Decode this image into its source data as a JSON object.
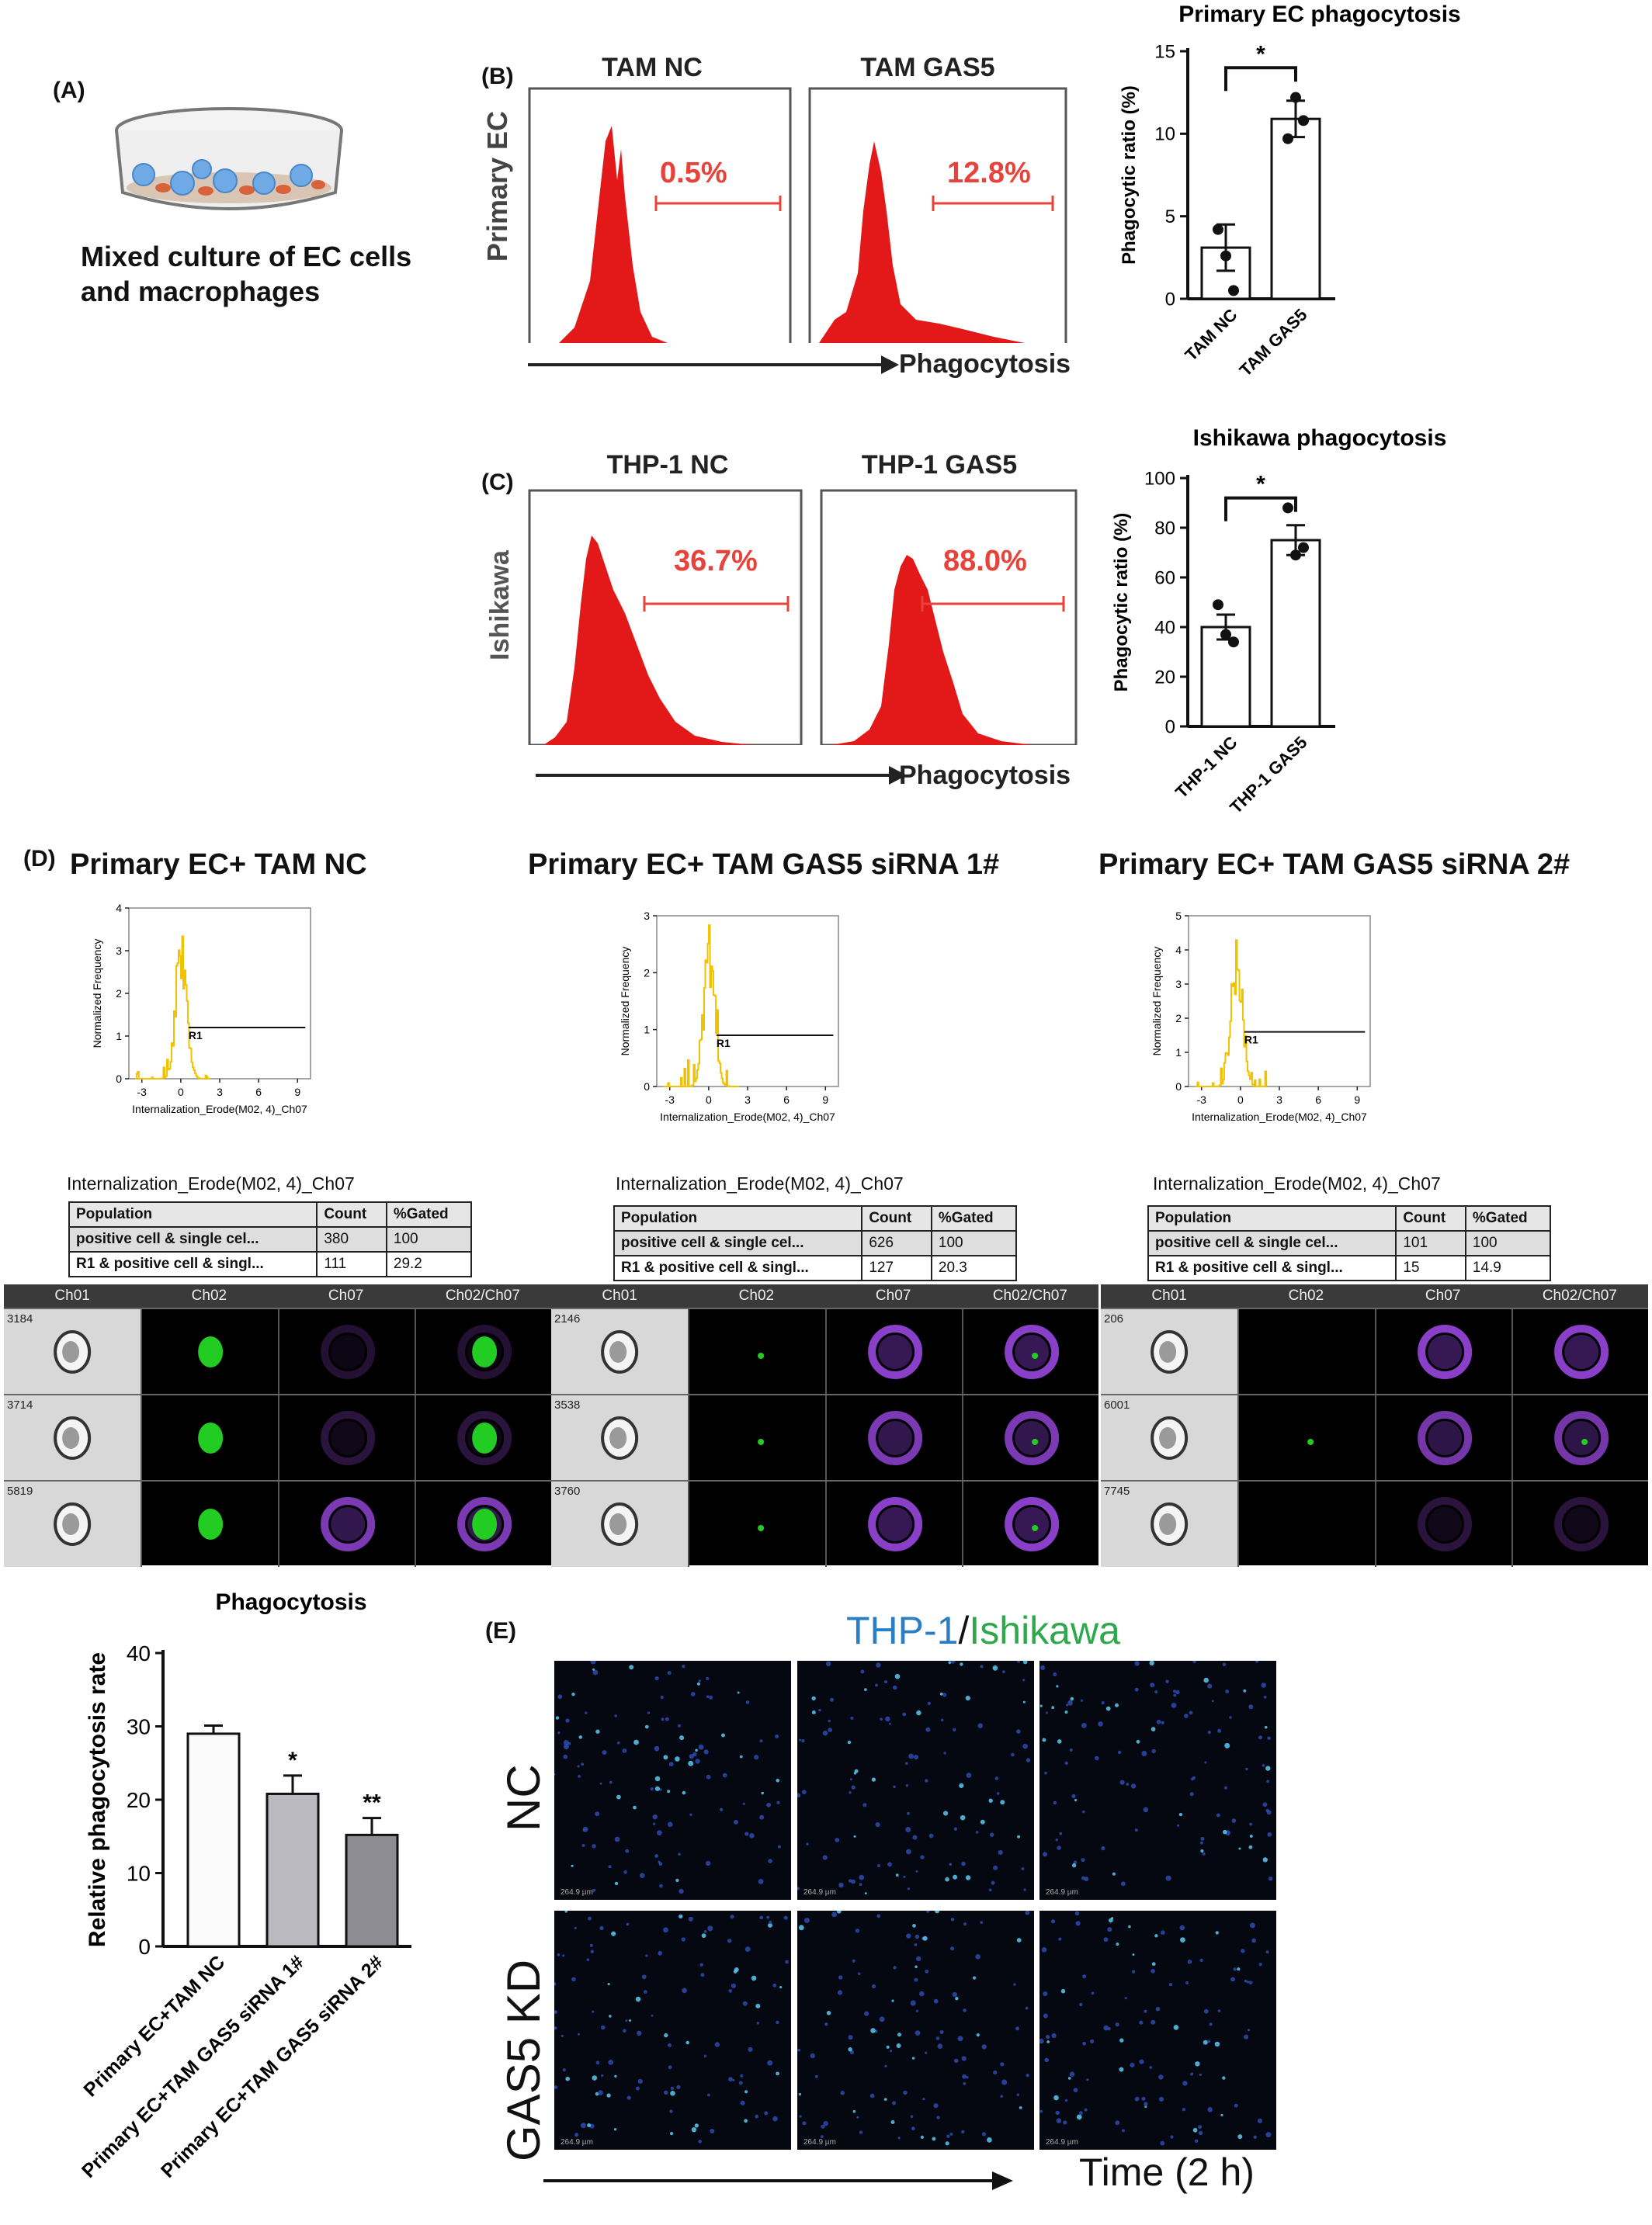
{
  "panels": {
    "A": "(A)",
    "B": "(B)",
    "C": "(C)",
    "D": "(D)",
    "E": "(E)"
  },
  "panelA": {
    "caption_line1": "Mixed culture of EC cells",
    "caption_line2": "and macrophages"
  },
  "panelB": {
    "row_label": "Primary EC",
    "col1_title": "TAM NC",
    "col2_title": "TAM GAS5",
    "gate1": "0.5%",
    "gate2": "12.8%",
    "axis_label": "Phagocytosis"
  },
  "panelC": {
    "row_label": "Ishikawa",
    "col1_title": "THP-1 NC",
    "col2_title": "THP-1 GAS5",
    "gate1": "36.7%",
    "gate2": "88.0%",
    "axis_label": "Phagocytosis"
  },
  "panelD": {
    "titles": [
      "Primary EC+ TAM NC",
      "Primary EC+ TAM GAS5 siRNA 1#",
      "Primary EC+ TAM GAS5 siRNA 2#"
    ],
    "hist_ylabel": "Normalized Frequency",
    "hist_xlabel": "Internalization_Erode(M02, 4)_Ch07",
    "gate_label": "R1",
    "table_caption": "Internalization_Erode(M02, 4)_Ch07",
    "table_headers": [
      "Population",
      "Count",
      "%Gated"
    ],
    "tables": [
      [
        [
          "positive cell & single cel...",
          "380",
          "100"
        ],
        [
          "R1 & positive cell & singl...",
          "111",
          "29.2"
        ]
      ],
      [
        [
          "positive cell & single cel...",
          "626",
          "100"
        ],
        [
          "R1 & positive cell & singl...",
          "127",
          "20.3"
        ]
      ],
      [
        [
          "positive cell & single cel...",
          "101",
          "100"
        ],
        [
          "R1 & positive cell & singl...",
          "15",
          "14.9"
        ]
      ]
    ],
    "channels": [
      "Ch01",
      "Ch02",
      "Ch07",
      "Ch02/Ch07"
    ],
    "cell_ids": [
      [
        "3184",
        "3714",
        "5819"
      ],
      [
        "2146",
        "3538",
        "3760"
      ],
      [
        "206",
        "6001",
        "7745"
      ]
    ]
  },
  "panelE": {
    "title_part1": "THP-1",
    "title_sep": "/",
    "title_part2": "Ishikawa",
    "row1": "NC",
    "row2": "GAS5 KD",
    "time_label": "Time (2 h)",
    "scale_label": "264.9 µm"
  },
  "colors": {
    "flow_red": "#e31818",
    "gate_red": "#e8433a",
    "hist_yellow": "#f2c200",
    "blue_title": "#2a7fc4",
    "green_title": "#2ea84a",
    "green_cell": "#22cc22",
    "purple_cell": "#8a3fc8"
  },
  "chart_data": [
    {
      "type": "bar",
      "title": "Primary EC phagocytosis",
      "categories": [
        "TAM NC",
        "TAM GAS5"
      ],
      "values": [
        3.1,
        10.9
      ],
      "errors": [
        1.4,
        1.1
      ],
      "points": [
        [
          4.2,
          2.6,
          0.5
        ],
        [
          9.7,
          12.2,
          10.8
        ]
      ],
      "ylabel": "Phagocytic ratio (%)",
      "ylim": [
        0,
        15
      ],
      "yticks": [
        0,
        5,
        10,
        15
      ],
      "significance": "*"
    },
    {
      "type": "bar",
      "title": "Ishikawa phagocytosis",
      "categories": [
        "THP-1 NC",
        "THP-1 GAS5"
      ],
      "values": [
        40,
        75
      ],
      "errors": [
        5,
        6
      ],
      "points": [
        [
          49,
          37,
          34
        ],
        [
          88,
          69,
          72
        ]
      ],
      "ylabel": "Phagocytic ratio (%)",
      "ylim": [
        0,
        100
      ],
      "yticks": [
        0,
        20,
        40,
        60,
        80,
        100
      ],
      "significance": "*"
    },
    {
      "type": "bar",
      "title": "Phagocytosis",
      "categories": [
        "Primary EC+TAM NC",
        "Primary EC+TAM GAS5 siRNA 1#",
        "Primary EC+TAM GAS5 siRNA 2#"
      ],
      "values": [
        29,
        20.8,
        15.2
      ],
      "errors": [
        1.1,
        2.5,
        2.3
      ],
      "ylabel": "Relative phagocytosis rate",
      "ylim": [
        0,
        40
      ],
      "yticks": [
        0,
        10,
        20,
        30,
        40
      ],
      "significance": [
        "",
        "*",
        "**"
      ]
    }
  ]
}
